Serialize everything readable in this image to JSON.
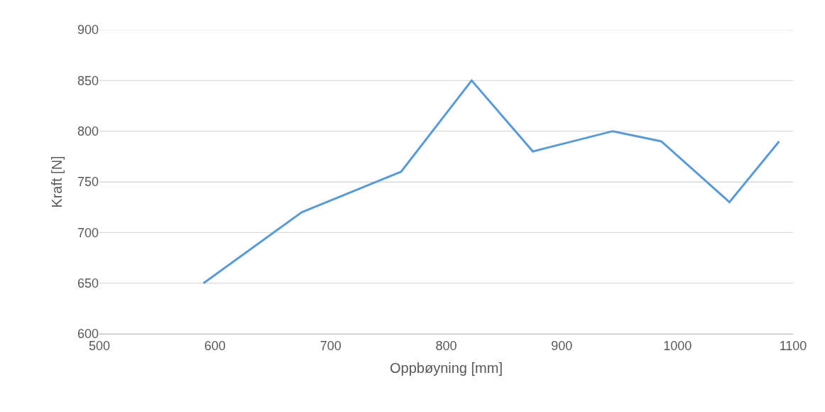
{
  "chart_data": {
    "type": "line",
    "xlabel": "Oppbøyning [mm]",
    "ylabel": "Kraft [N]",
    "x": [
      590,
      675,
      761,
      822,
      875,
      944,
      986,
      1045,
      1088
    ],
    "series": [
      {
        "color": "#5b9bd5",
        "values": [
          650,
          720,
          760,
          850,
          780,
          800,
          790,
          730,
          790
        ]
      }
    ],
    "xlim": [
      500,
      1100
    ],
    "xticks": [
      500,
      600,
      700,
      800,
      900,
      1000,
      1100
    ],
    "ylim": [
      600,
      900
    ],
    "yticks": [
      600,
      650,
      700,
      750,
      800,
      850,
      900
    ],
    "grid": "y",
    "marker": "none",
    "line_style": "solid"
  }
}
